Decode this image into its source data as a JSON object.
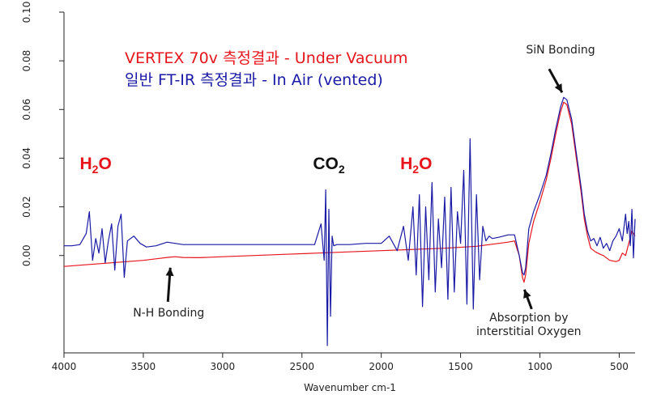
{
  "chart_data": {
    "type": "line",
    "xlabel": "Wavenumber cm-1",
    "xlim": [
      4000,
      400
    ],
    "ylim": [
      -0.04,
      0.1
    ],
    "x_ticks": [
      4000,
      3500,
      3000,
      2500,
      2000,
      1500,
      1000,
      500
    ],
    "x_tick_labels": [
      "4000",
      "3500",
      "3000",
      "2500",
      "2000",
      "1500",
      "1000",
      "500"
    ],
    "y_ticks": [
      0.0,
      0.02,
      0.04,
      0.06,
      0.08,
      0.1
    ],
    "y_tick_labels": [
      "0.00",
      "0.02",
      "0.04",
      "0.06",
      "0.08",
      "0.10"
    ],
    "grid": false,
    "series": [
      {
        "name": "VERTEX 70v 측정결과 - Under Vacuum",
        "color": "#e8141c",
        "x": [
          4000,
          3900,
          3800,
          3700,
          3600,
          3500,
          3400,
          3350,
          3300,
          3250,
          3150,
          3000,
          2800,
          2600,
          2400,
          2200,
          2000,
          1800,
          1600,
          1400,
          1200,
          1160,
          1130,
          1110,
          1100,
          1090,
          1070,
          1040,
          1000,
          960,
          930,
          900,
          870,
          850,
          830,
          800,
          770,
          740,
          720,
          700,
          680,
          650,
          620,
          600,
          560,
          520,
          500,
          480,
          460,
          440,
          420,
          400
        ],
        "y": [
          -0.0045,
          -0.004,
          -0.0035,
          -0.003,
          -0.0025,
          -0.002,
          -0.0012,
          -0.0008,
          -0.0005,
          -0.0008,
          -0.0009,
          -0.0005,
          0.0,
          0.0005,
          0.001,
          0.0015,
          0.002,
          0.0025,
          0.003,
          0.0038,
          0.0055,
          0.006,
          0.0,
          -0.009,
          -0.011,
          -0.008,
          0.005,
          0.014,
          0.022,
          0.031,
          0.04,
          0.05,
          0.059,
          0.063,
          0.062,
          0.054,
          0.04,
          0.026,
          0.015,
          0.008,
          0.003,
          0.0015,
          0.0005,
          0.0,
          -0.002,
          -0.0025,
          -0.002,
          0.001,
          0.0,
          0.005,
          0.01,
          0.008
        ]
      },
      {
        "name": "일반 FT-IR 측정결과 - In Air (vented)",
        "color": "#1a1aa6",
        "x": [
          4000,
          3950,
          3900,
          3860,
          3840,
          3820,
          3800,
          3780,
          3760,
          3740,
          3720,
          3700,
          3680,
          3660,
          3640,
          3620,
          3600,
          3560,
          3520,
          3480,
          3420,
          3350,
          3300,
          3250,
          3150,
          3000,
          2800,
          2600,
          2420,
          2380,
          2360,
          2350,
          2340,
          2330,
          2320,
          2310,
          2300,
          2280,
          2250,
          2200,
          2100,
          2000,
          1950,
          1900,
          1860,
          1830,
          1800,
          1780,
          1760,
          1740,
          1720,
          1700,
          1680,
          1660,
          1640,
          1620,
          1600,
          1580,
          1560,
          1540,
          1520,
          1500,
          1480,
          1460,
          1440,
          1420,
          1400,
          1380,
          1360,
          1340,
          1320,
          1300,
          1260,
          1200,
          1160,
          1130,
          1110,
          1100,
          1090,
          1070,
          1040,
          1000,
          960,
          930,
          900,
          870,
          850,
          830,
          800,
          770,
          740,
          720,
          700,
          680,
          660,
          640,
          620,
          600,
          580,
          560,
          540,
          520,
          500,
          480,
          460,
          450,
          440,
          430,
          420,
          410,
          400
        ],
        "y": [
          0.004,
          0.004,
          0.0045,
          0.009,
          0.018,
          -0.002,
          0.007,
          0.001,
          0.011,
          -0.003,
          0.006,
          0.013,
          -0.006,
          0.012,
          0.017,
          -0.009,
          0.006,
          0.008,
          0.005,
          0.0035,
          0.004,
          0.0055,
          0.005,
          0.0045,
          0.0045,
          0.0045,
          0.0045,
          0.0045,
          0.0045,
          0.013,
          -0.002,
          0.027,
          -0.037,
          0.019,
          -0.025,
          0.008,
          0.004,
          0.0045,
          0.0045,
          0.0045,
          0.005,
          0.005,
          0.008,
          0.002,
          0.012,
          -0.002,
          0.02,
          -0.008,
          0.025,
          -0.021,
          0.02,
          -0.01,
          0.03,
          -0.015,
          0.015,
          -0.005,
          0.024,
          -0.018,
          0.028,
          -0.015,
          0.018,
          0.005,
          0.035,
          -0.02,
          0.048,
          -0.022,
          0.025,
          -0.01,
          0.012,
          0.006,
          0.008,
          0.007,
          0.0075,
          0.0085,
          0.0085,
          0.0,
          -0.007,
          -0.008,
          -0.005,
          0.011,
          0.018,
          0.025,
          0.033,
          0.042,
          0.052,
          0.061,
          0.065,
          0.064,
          0.056,
          0.042,
          0.028,
          0.017,
          0.01,
          0.006,
          0.007,
          0.004,
          0.0075,
          0.003,
          0.005,
          0.002,
          0.006,
          0.008,
          0.011,
          0.006,
          0.017,
          0.009,
          0.014,
          0.004,
          0.019,
          -0.001,
          0.015
        ]
      }
    ],
    "annotations": [
      {
        "text": "SiN Bonding",
        "target_x": 850,
        "target_y": 0.066,
        "text_x": 870,
        "text_y": 0.083,
        "has_arrow": true
      },
      {
        "text": "N-H Bonding",
        "target_x": 3340,
        "target_y": -0.004,
        "text_x": 3340,
        "text_y": -0.025,
        "has_arrow": true
      },
      {
        "text_lines": [
          "Absorption by",
          "interstitial Oxygen"
        ],
        "target_x": 1108,
        "target_y": -0.014,
        "text_x": 1070,
        "text_y": -0.027,
        "has_arrow": true
      }
    ],
    "labels": [
      {
        "base": "H",
        "sub": "2",
        "tail": "O",
        "color": "#e8141c",
        "x": 3800,
        "y": 0.0355
      },
      {
        "base": "CO",
        "sub": "2",
        "tail": "",
        "color": "#111111",
        "x": 2330,
        "y": 0.0355
      },
      {
        "base": "H",
        "sub": "2",
        "tail": "O",
        "color": "#e8141c",
        "x": 1780,
        "y": 0.0355
      }
    ]
  }
}
